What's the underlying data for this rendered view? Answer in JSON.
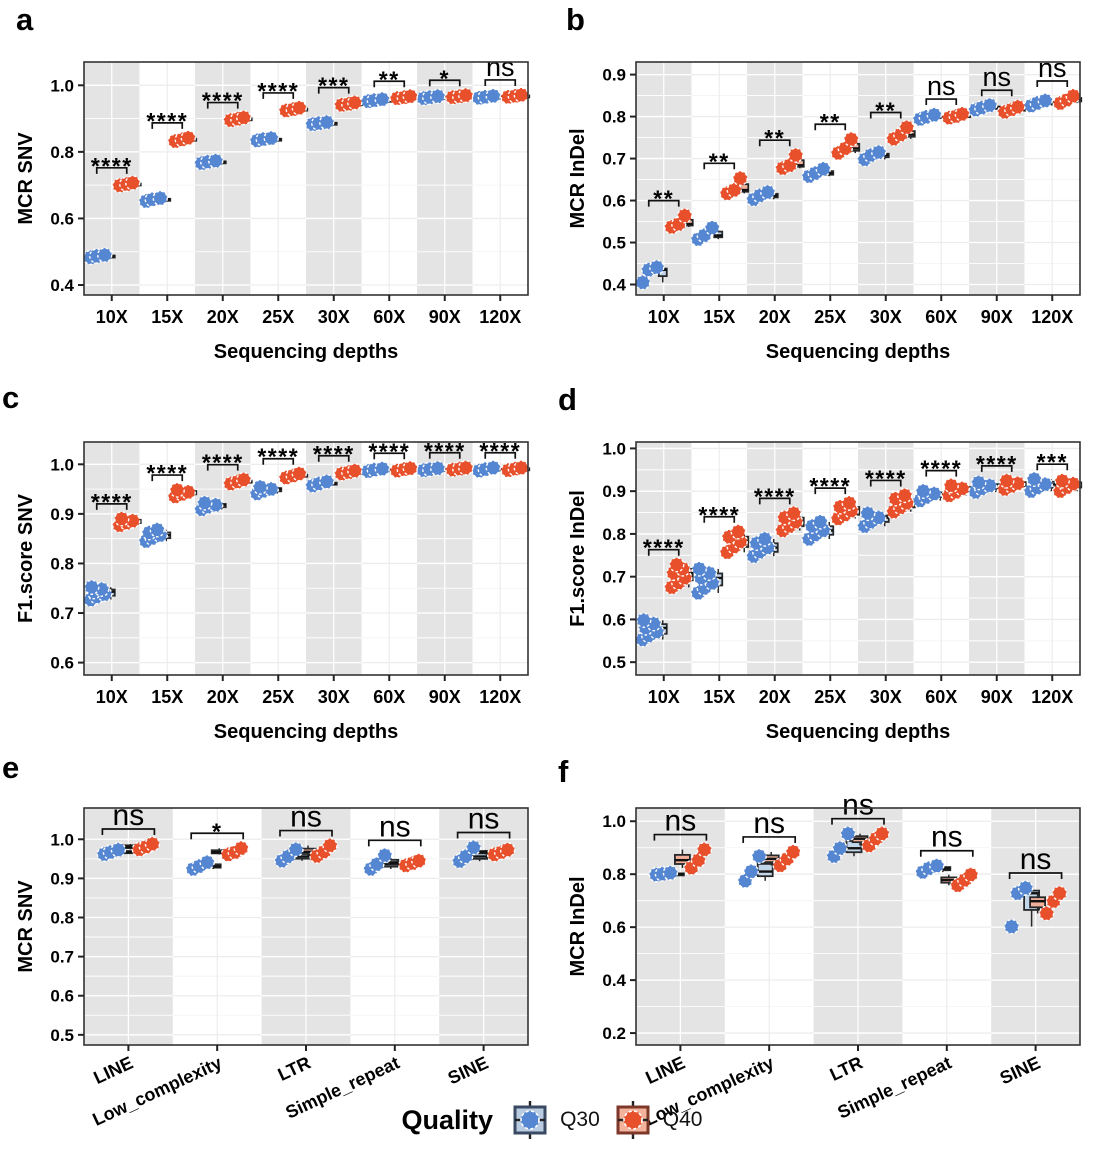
{
  "legend": {
    "title": "Quality",
    "items": [
      {
        "label": "Q30",
        "point_color": "#5586D1",
        "box_fill": "#B9CCE2",
        "box_border": "#3A4A63"
      },
      {
        "label": "Q40",
        "point_color": "#E8502C",
        "box_fill": "#F2B29C",
        "box_border": "#7E382A"
      }
    ]
  },
  "style": {
    "band_gray": "#E4E4E4",
    "grid_on_white": "#EDEDED",
    "grid_minor_on_white": "#F3F3F3",
    "grid_on_gray": "#FFFFFF",
    "plot_border": "#333333",
    "box_stroke": "#26282A",
    "q30_box_fill": "#C3D6E9",
    "q40_box_fill": "#F0B09A",
    "sig_color": "#111111"
  },
  "chart_data": [
    {
      "id": "a",
      "panel_label": "a",
      "type": "scatter",
      "title": "",
      "xlabel": "Sequencing depths",
      "ylabel": "MCR SNV",
      "categories": [
        "10X",
        "15X",
        "20X",
        "25X",
        "30X",
        "60X",
        "90X",
        "120X"
      ],
      "rotated_xticks": false,
      "ylim": [
        0.37,
        1.07
      ],
      "yticks": [
        0.4,
        0.6,
        0.8,
        1.0
      ],
      "significance": [
        "****",
        "****",
        "****",
        "****",
        "***",
        "**",
        "*",
        "ns"
      ],
      "series": [
        {
          "name": "Q30",
          "values": [
            [
              0.483,
              0.487,
              0.49
            ],
            [
              0.652,
              0.657,
              0.661
            ],
            [
              0.766,
              0.77,
              0.773
            ],
            [
              0.834,
              0.838,
              0.841
            ],
            [
              0.883,
              0.886,
              0.889
            ],
            [
              0.952,
              0.955,
              0.958
            ],
            [
              0.961,
              0.964,
              0.967
            ],
            [
              0.962,
              0.965,
              0.968
            ]
          ]
        },
        {
          "name": "Q40",
          "values": [
            [
              0.699,
              0.703,
              0.707
            ],
            [
              0.832,
              0.837,
              0.842
            ],
            [
              0.895,
              0.899,
              0.903
            ],
            [
              0.924,
              0.928,
              0.932
            ],
            [
              0.941,
              0.944,
              0.948
            ],
            [
              0.961,
              0.964,
              0.967
            ],
            [
              0.964,
              0.967,
              0.97
            ],
            [
              0.965,
              0.968,
              0.971
            ]
          ]
        }
      ]
    },
    {
      "id": "b",
      "panel_label": "b",
      "type": "scatter",
      "title": "",
      "xlabel": "Sequencing depths",
      "ylabel": "MCR InDel",
      "categories": [
        "10X",
        "15X",
        "20X",
        "25X",
        "30X",
        "60X",
        "90X",
        "120X"
      ],
      "rotated_xticks": false,
      "ylim": [
        0.375,
        0.93
      ],
      "yticks": [
        0.4,
        0.5,
        0.6,
        0.7,
        0.8,
        0.9
      ],
      "significance": [
        "**",
        "**",
        "**",
        "**",
        "**",
        "ns",
        "ns",
        "ns"
      ],
      "series": [
        {
          "name": "Q30",
          "values": [
            [
              0.405,
              0.435,
              0.441
            ],
            [
              0.508,
              0.517,
              0.535
            ],
            [
              0.603,
              0.612,
              0.62
            ],
            [
              0.658,
              0.665,
              0.675
            ],
            [
              0.698,
              0.708,
              0.715
            ],
            [
              0.794,
              0.799,
              0.804
            ],
            [
              0.816,
              0.821,
              0.827
            ],
            [
              0.826,
              0.832,
              0.838
            ]
          ]
        },
        {
          "name": "Q40",
          "values": [
            [
              0.537,
              0.544,
              0.564
            ],
            [
              0.617,
              0.625,
              0.653
            ],
            [
              0.677,
              0.684,
              0.708
            ],
            [
              0.713,
              0.724,
              0.746
            ],
            [
              0.747,
              0.757,
              0.774
            ],
            [
              0.797,
              0.801,
              0.806
            ],
            [
              0.811,
              0.817,
              0.823
            ],
            [
              0.832,
              0.84,
              0.849
            ]
          ]
        }
      ]
    },
    {
      "id": "c",
      "panel_label": "c",
      "type": "scatter",
      "title": "",
      "xlabel": "Sequencing depths",
      "ylabel": "F1.score SNV",
      "categories": [
        "10X",
        "15X",
        "20X",
        "25X",
        "30X",
        "60X",
        "90X",
        "120X"
      ],
      "rotated_xticks": false,
      "ylim": [
        0.575,
        1.045
      ],
      "yticks": [
        0.6,
        0.7,
        0.8,
        0.9,
        1.0
      ],
      "significance": [
        "****",
        "****",
        "****",
        "****",
        "****",
        "****",
        "****",
        "****"
      ],
      "series": [
        {
          "name": "Q30",
          "values": [
            [
              0.727,
              0.733,
              0.738,
              0.743,
              0.748,
              0.752
            ],
            [
              0.845,
              0.851,
              0.857,
              0.862,
              0.868
            ],
            [
              0.909,
              0.914,
              0.918,
              0.922
            ],
            [
              0.941,
              0.946,
              0.95,
              0.954
            ],
            [
              0.957,
              0.961,
              0.965
            ],
            [
              0.986,
              0.989,
              0.991
            ],
            [
              0.988,
              0.99,
              0.992
            ],
            [
              0.987,
              0.99,
              0.993
            ]
          ]
        },
        {
          "name": "Q40",
          "values": [
            [
              0.877,
              0.882,
              0.886,
              0.89
            ],
            [
              0.935,
              0.94,
              0.944,
              0.948
            ],
            [
              0.961,
              0.965,
              0.969
            ],
            [
              0.973,
              0.977,
              0.981
            ],
            [
              0.981,
              0.984,
              0.987
            ],
            [
              0.987,
              0.99,
              0.992
            ],
            [
              0.989,
              0.991,
              0.993
            ],
            [
              0.988,
              0.991,
              0.993
            ]
          ]
        }
      ]
    },
    {
      "id": "d",
      "panel_label": "d",
      "type": "scatter",
      "title": "",
      "xlabel": "Sequencing depths",
      "ylabel": "F1.score InDel",
      "categories": [
        "10X",
        "15X",
        "20X",
        "25X",
        "30X",
        "60X",
        "90X",
        "120X"
      ],
      "rotated_xticks": false,
      "ylim": [
        0.47,
        1.015
      ],
      "yticks": [
        0.5,
        0.6,
        0.7,
        0.8,
        0.9,
        1.0
      ],
      "significance": [
        "****",
        "****",
        "****",
        "****",
        "****",
        "****",
        "****",
        "***"
      ],
      "series": [
        {
          "name": "Q30",
          "values": [
            [
              0.553,
              0.562,
              0.571,
              0.58,
              0.59,
              0.598
            ],
            [
              0.662,
              0.673,
              0.685,
              0.697,
              0.708,
              0.718
            ],
            [
              0.748,
              0.758,
              0.768,
              0.778,
              0.788
            ],
            [
              0.788,
              0.798,
              0.808,
              0.818,
              0.828
            ],
            [
              0.818,
              0.828,
              0.838,
              0.848
            ],
            [
              0.878,
              0.886,
              0.894,
              0.9
            ],
            [
              0.898,
              0.906,
              0.913,
              0.92
            ],
            [
              0.9,
              0.908,
              0.916,
              0.928
            ]
          ]
        },
        {
          "name": "Q40",
          "values": [
            [
              0.675,
              0.686,
              0.697,
              0.708,
              0.718,
              0.728
            ],
            [
              0.757,
              0.77,
              0.782,
              0.793,
              0.805
            ],
            [
              0.808,
              0.818,
              0.828,
              0.838,
              0.848
            ],
            [
              0.836,
              0.845,
              0.854,
              0.863,
              0.872
            ],
            [
              0.852,
              0.862,
              0.872,
              0.882,
              0.89
            ],
            [
              0.89,
              0.898,
              0.906,
              0.913
            ],
            [
              0.905,
              0.912,
              0.918,
              0.924
            ],
            [
              0.9,
              0.909,
              0.917,
              0.924
            ]
          ]
        }
      ]
    },
    {
      "id": "e",
      "panel_label": "e",
      "type": "scatter",
      "title": "",
      "xlabel": "",
      "ylabel": "MCR SNV",
      "categories": [
        "LINE",
        "Low_complexity",
        "LTR",
        "Simple_repeat",
        "SINE"
      ],
      "rotated_xticks": true,
      "ylim": [
        0.474,
        1.08
      ],
      "yticks": [
        0.5,
        0.6,
        0.7,
        0.8,
        0.9,
        1.0
      ],
      "significance": [
        "ns",
        "*",
        "ns",
        "ns",
        "ns"
      ],
      "series": [
        {
          "name": "Q30",
          "values": [
            [
              0.962,
              0.967,
              0.973
            ],
            [
              0.924,
              0.931,
              0.941
            ],
            [
              0.945,
              0.956,
              0.974
            ],
            [
              0.924,
              0.936,
              0.959
            ],
            [
              0.944,
              0.956,
              0.979
            ]
          ]
        },
        {
          "name": "Q40",
          "values": [
            [
              0.974,
              0.981,
              0.988
            ],
            [
              0.961,
              0.967,
              0.977
            ],
            [
              0.957,
              0.968,
              0.984
            ],
            [
              0.933,
              0.939,
              0.945
            ],
            [
              0.961,
              0.967,
              0.973
            ]
          ]
        }
      ]
    },
    {
      "id": "f",
      "panel_label": "f",
      "type": "scatter",
      "title": "",
      "xlabel": "",
      "ylabel": "MCR InDel",
      "categories": [
        "LINE",
        "Low_complexity",
        "LTR",
        "Simple_repeat",
        "SINE"
      ],
      "rotated_xticks": true,
      "ylim": [
        0.155,
        1.05
      ],
      "yticks": [
        0.2,
        0.4,
        0.6,
        0.8,
        1.0
      ],
      "significance": [
        "ns",
        "ns",
        "ns",
        "ns",
        "ns"
      ],
      "series": [
        {
          "name": "Q30",
          "values": [
            [
              0.798,
              0.801,
              0.805
            ],
            [
              0.775,
              0.81,
              0.868
            ],
            [
              0.868,
              0.898,
              0.953
            ],
            [
              0.808,
              0.822,
              0.832
            ],
            [
              0.602,
              0.728,
              0.748
            ]
          ]
        },
        {
          "name": "Q40",
          "values": [
            [
              0.824,
              0.853,
              0.893
            ],
            [
              0.833,
              0.858,
              0.884
            ],
            [
              0.908,
              0.934,
              0.953
            ],
            [
              0.758,
              0.778,
              0.798
            ],
            [
              0.652,
              0.698,
              0.728
            ]
          ]
        }
      ]
    }
  ]
}
